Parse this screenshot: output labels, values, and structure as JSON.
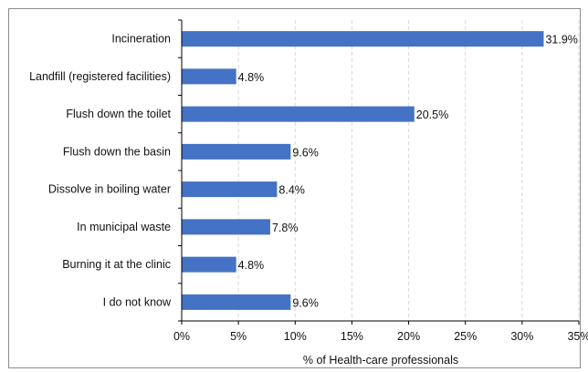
{
  "chart_data": {
    "type": "bar",
    "orientation": "horizontal",
    "categories": [
      "Incineration",
      "Landfill (registered facilities)",
      "Flush down the toilet",
      "Flush down the basin",
      "Dissolve in boiling water",
      "In municipal waste",
      "Burning it at the clinic",
      "I do not know"
    ],
    "values": [
      31.9,
      4.8,
      20.5,
      9.6,
      8.4,
      7.8,
      4.8,
      9.6
    ],
    "data_labels": [
      "31.9%",
      "4.8%",
      "20.5%",
      "9.6%",
      "8.4%",
      "7.8%",
      "4.8%",
      "9.6%"
    ],
    "xlabel": "% of Health-care professionals",
    "ylabel": "",
    "xlim": [
      0,
      35
    ],
    "xticks": [
      0,
      5,
      10,
      15,
      20,
      25,
      30,
      35
    ],
    "xtick_labels": [
      "0%",
      "5%",
      "10%",
      "15%",
      "20%",
      "25%",
      "30%",
      "35%"
    ],
    "grid": "vertical dashed",
    "legend": "none",
    "bar_color": "#4472c4",
    "grid_color": "#d9d9d9",
    "axis_color": "#000000"
  }
}
